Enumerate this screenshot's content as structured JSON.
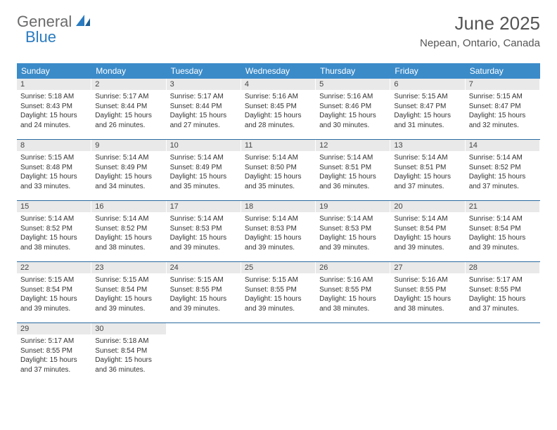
{
  "logo": {
    "general": "General",
    "blue": "Blue"
  },
  "title": "June 2025",
  "location": "Nepean, Ontario, Canada",
  "colors": {
    "header_bg": "#3b8bc9",
    "header_text": "#ffffff",
    "daynum_bg": "#e9e9e9",
    "row_border": "#2a6aa0",
    "title_color": "#555555",
    "logo_gray": "#6b6b6b",
    "logo_blue": "#2a7bc0"
  },
  "weekdays": [
    "Sunday",
    "Monday",
    "Tuesday",
    "Wednesday",
    "Thursday",
    "Friday",
    "Saturday"
  ],
  "days": [
    {
      "n": "1",
      "sr": "5:18 AM",
      "ss": "8:43 PM",
      "dl": "15 hours and 24 minutes."
    },
    {
      "n": "2",
      "sr": "5:17 AM",
      "ss": "8:44 PM",
      "dl": "15 hours and 26 minutes."
    },
    {
      "n": "3",
      "sr": "5:17 AM",
      "ss": "8:44 PM",
      "dl": "15 hours and 27 minutes."
    },
    {
      "n": "4",
      "sr": "5:16 AM",
      "ss": "8:45 PM",
      "dl": "15 hours and 28 minutes."
    },
    {
      "n": "5",
      "sr": "5:16 AM",
      "ss": "8:46 PM",
      "dl": "15 hours and 30 minutes."
    },
    {
      "n": "6",
      "sr": "5:15 AM",
      "ss": "8:47 PM",
      "dl": "15 hours and 31 minutes."
    },
    {
      "n": "7",
      "sr": "5:15 AM",
      "ss": "8:47 PM",
      "dl": "15 hours and 32 minutes."
    },
    {
      "n": "8",
      "sr": "5:15 AM",
      "ss": "8:48 PM",
      "dl": "15 hours and 33 minutes."
    },
    {
      "n": "9",
      "sr": "5:14 AM",
      "ss": "8:49 PM",
      "dl": "15 hours and 34 minutes."
    },
    {
      "n": "10",
      "sr": "5:14 AM",
      "ss": "8:49 PM",
      "dl": "15 hours and 35 minutes."
    },
    {
      "n": "11",
      "sr": "5:14 AM",
      "ss": "8:50 PM",
      "dl": "15 hours and 35 minutes."
    },
    {
      "n": "12",
      "sr": "5:14 AM",
      "ss": "8:51 PM",
      "dl": "15 hours and 36 minutes."
    },
    {
      "n": "13",
      "sr": "5:14 AM",
      "ss": "8:51 PM",
      "dl": "15 hours and 37 minutes."
    },
    {
      "n": "14",
      "sr": "5:14 AM",
      "ss": "8:52 PM",
      "dl": "15 hours and 37 minutes."
    },
    {
      "n": "15",
      "sr": "5:14 AM",
      "ss": "8:52 PM",
      "dl": "15 hours and 38 minutes."
    },
    {
      "n": "16",
      "sr": "5:14 AM",
      "ss": "8:52 PM",
      "dl": "15 hours and 38 minutes."
    },
    {
      "n": "17",
      "sr": "5:14 AM",
      "ss": "8:53 PM",
      "dl": "15 hours and 39 minutes."
    },
    {
      "n": "18",
      "sr": "5:14 AM",
      "ss": "8:53 PM",
      "dl": "15 hours and 39 minutes."
    },
    {
      "n": "19",
      "sr": "5:14 AM",
      "ss": "8:53 PM",
      "dl": "15 hours and 39 minutes."
    },
    {
      "n": "20",
      "sr": "5:14 AM",
      "ss": "8:54 PM",
      "dl": "15 hours and 39 minutes."
    },
    {
      "n": "21",
      "sr": "5:14 AM",
      "ss": "8:54 PM",
      "dl": "15 hours and 39 minutes."
    },
    {
      "n": "22",
      "sr": "5:15 AM",
      "ss": "8:54 PM",
      "dl": "15 hours and 39 minutes."
    },
    {
      "n": "23",
      "sr": "5:15 AM",
      "ss": "8:54 PM",
      "dl": "15 hours and 39 minutes."
    },
    {
      "n": "24",
      "sr": "5:15 AM",
      "ss": "8:55 PM",
      "dl": "15 hours and 39 minutes."
    },
    {
      "n": "25",
      "sr": "5:15 AM",
      "ss": "8:55 PM",
      "dl": "15 hours and 39 minutes."
    },
    {
      "n": "26",
      "sr": "5:16 AM",
      "ss": "8:55 PM",
      "dl": "15 hours and 38 minutes."
    },
    {
      "n": "27",
      "sr": "5:16 AM",
      "ss": "8:55 PM",
      "dl": "15 hours and 38 minutes."
    },
    {
      "n": "28",
      "sr": "5:17 AM",
      "ss": "8:55 PM",
      "dl": "15 hours and 37 minutes."
    },
    {
      "n": "29",
      "sr": "5:17 AM",
      "ss": "8:55 PM",
      "dl": "15 hours and 37 minutes."
    },
    {
      "n": "30",
      "sr": "5:18 AM",
      "ss": "8:54 PM",
      "dl": "15 hours and 36 minutes."
    }
  ],
  "labels": {
    "sunrise": "Sunrise: ",
    "sunset": "Sunset: ",
    "daylight": "Daylight: "
  },
  "layout": {
    "start_weekday": 0,
    "total_days": 30,
    "cols": 7
  }
}
